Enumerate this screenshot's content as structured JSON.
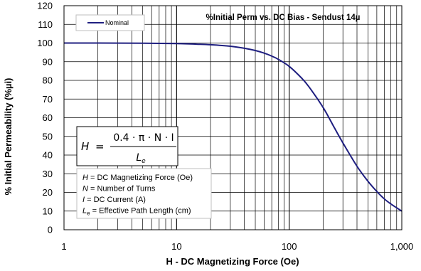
{
  "chart_data": {
    "type": "line",
    "title": "%Initial Perm vs. DC Bias - Sendust  14µ",
    "xlabel": "H - DC Magnetizing Force (Oe)",
    "ylabel": "% Initial Permeability (%µi)",
    "x_scale": "log",
    "xlim": [
      1,
      1000
    ],
    "ylim": [
      0,
      120
    ],
    "x_ticks": [
      1,
      10,
      100,
      1000
    ],
    "x_tick_labels": [
      "1",
      "10",
      "100",
      "1,000"
    ],
    "y_ticks": [
      0,
      10,
      20,
      30,
      40,
      50,
      60,
      70,
      80,
      90,
      100,
      110,
      120
    ],
    "grid": true,
    "legend": "top-left",
    "series": [
      {
        "name": "Nominal",
        "color": "#1f1f80",
        "x": [
          1,
          2,
          5,
          10,
          15,
          20,
          30,
          40,
          50,
          60,
          70,
          80,
          100,
          130,
          150,
          200,
          250,
          300,
          400,
          500,
          600,
          700,
          800,
          1000
        ],
        "y": [
          100,
          100,
          99.9,
          99.7,
          99.4,
          99.1,
          98.3,
          97.2,
          96,
          94.6,
          93,
          91.3,
          87.5,
          81,
          76.5,
          65.5,
          55,
          46.5,
          34,
          26,
          20.5,
          16.5,
          13.8,
          10
        ]
      }
    ],
    "annotations": {
      "formula": {
        "lhs": "H",
        "numerator": "0.4 · π · N · I",
        "denominator": "L",
        "denominator_sub": "e"
      },
      "definitions": [
        {
          "sym": "H",
          "sub": "",
          "text": " = DC Magnetizing Force (Oe)"
        },
        {
          "sym": "N",
          "sub": "",
          "text": " = Number of Turns"
        },
        {
          "sym": "I",
          "sub": "",
          "text": " = DC Current (A)"
        },
        {
          "sym": "L",
          "sub": "e",
          "text": " = Effective Path Length (cm)"
        }
      ]
    }
  }
}
